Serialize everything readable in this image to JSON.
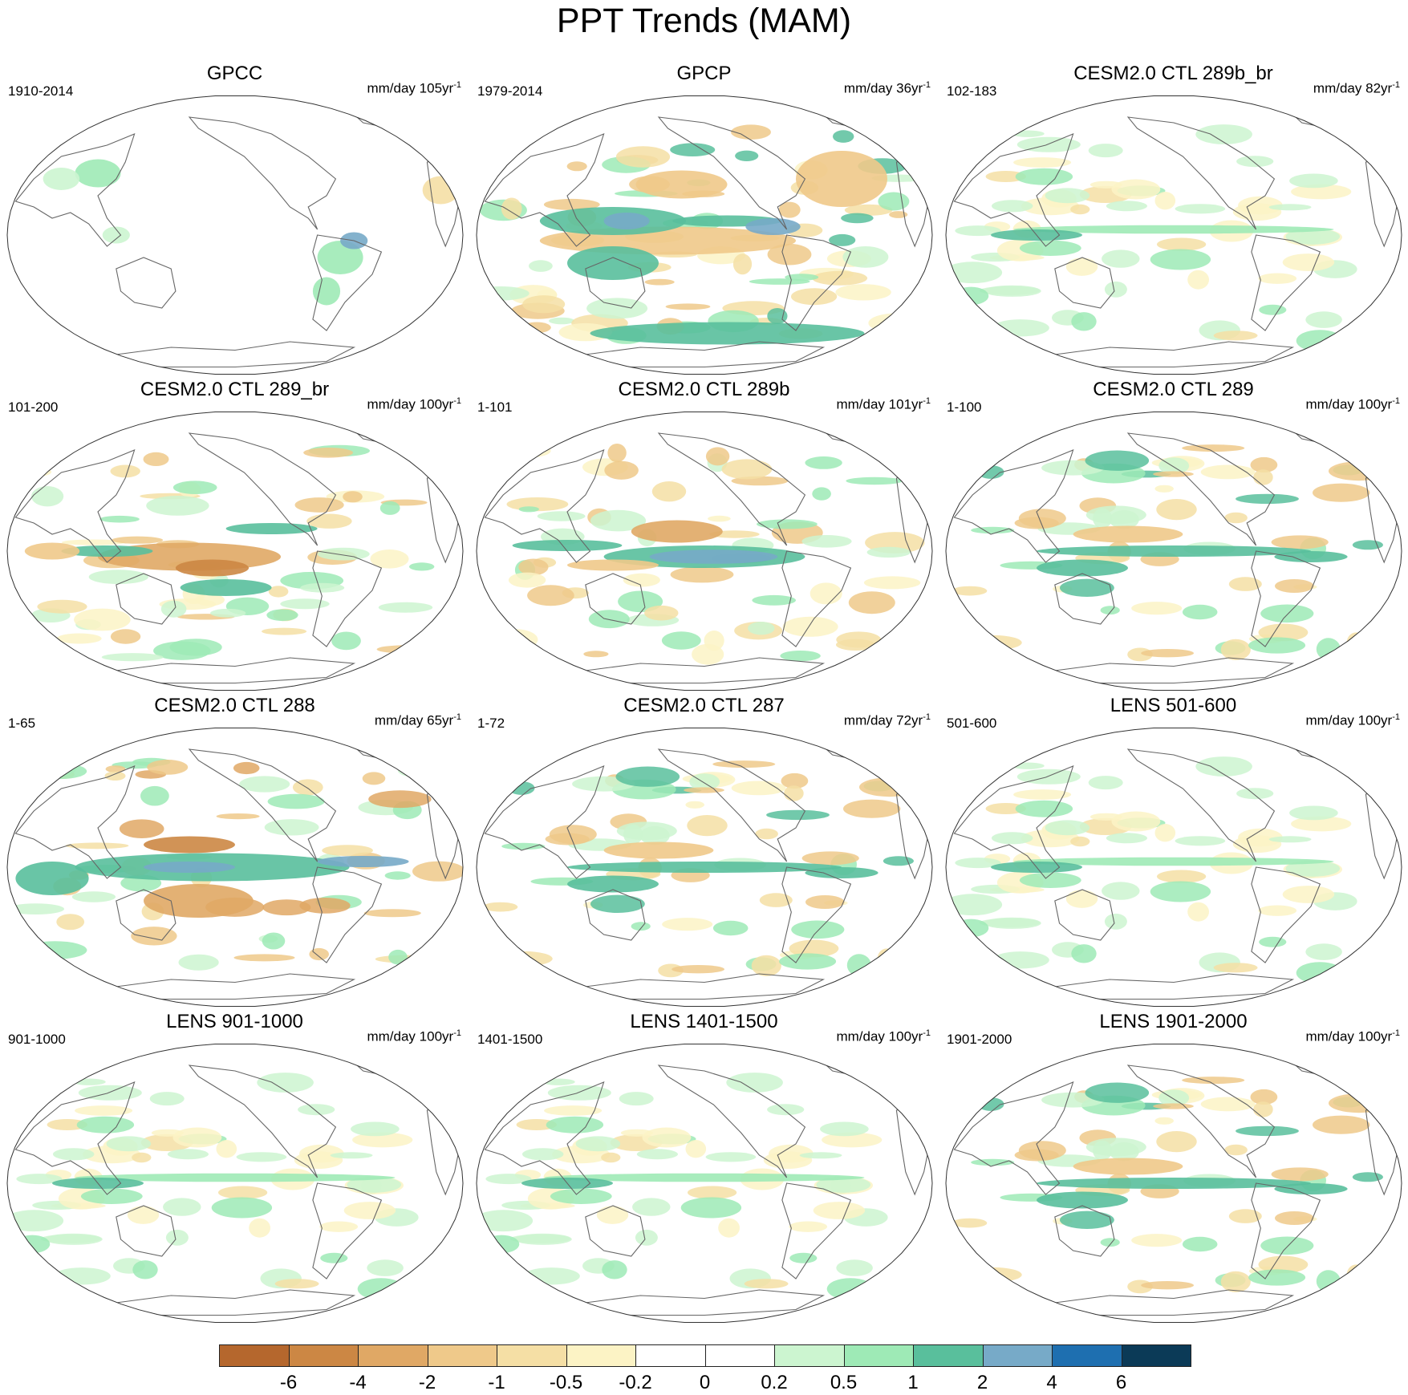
{
  "title": "PPT Trends (MAM)",
  "units_prefix": "mm/day",
  "units_suffix": "yr",
  "units_exp": "-1",
  "panels": [
    {
      "name": "GPCC",
      "period": "1910-2014",
      "per": "105",
      "mode": "land"
    },
    {
      "name": "GPCP",
      "period": "1979-2014",
      "per": "36",
      "mode": "gpcp"
    },
    {
      "name": "CESM2.0 CTL 289b_br",
      "period": "102-183",
      "per": "82",
      "mode": "weak"
    },
    {
      "name": "CESM2.0 CTL 289_br",
      "period": "101-200",
      "per": "100",
      "mode": "dry"
    },
    {
      "name": "CESM2.0 CTL 289b",
      "period": "1-101",
      "per": "101",
      "mode": "wet"
    },
    {
      "name": "CESM2.0 CTL 289",
      "period": "1-100",
      "per": "100",
      "mode": "mixed"
    },
    {
      "name": "CESM2.0 CTL 288",
      "period": "1-65",
      "per": "65",
      "mode": "strong"
    },
    {
      "name": "CESM2.0 CTL 287",
      "period": "1-72",
      "per": "72",
      "mode": "mixed"
    },
    {
      "name": "LENS 501-600",
      "period": "501-600",
      "per": "100",
      "mode": "weak"
    },
    {
      "name": "LENS 901-1000",
      "period": "901-1000",
      "per": "100",
      "mode": "weak"
    },
    {
      "name": "LENS 1401-1500",
      "period": "1401-1500",
      "per": "100",
      "mode": "weak"
    },
    {
      "name": "LENS 1901-2000",
      "period": "1901-2000",
      "per": "100",
      "mode": "mixed"
    }
  ],
  "colorbar": {
    "colors": [
      "#b5672d",
      "#cc8744",
      "#e0a865",
      "#efc98a",
      "#f5dfa5",
      "#fcf3c5",
      "#ffffff",
      "#ffffff",
      "#ccf5d0",
      "#9eeab6",
      "#59bf9c",
      "#77aac8",
      "#1e6fb0",
      "#0b3a57"
    ],
    "labels": [
      "-6",
      "-4",
      "-2",
      "-1",
      "-0.5",
      "-0.2",
      "0",
      "0.2",
      "0.5",
      "1",
      "2",
      "4",
      "6"
    ]
  }
}
